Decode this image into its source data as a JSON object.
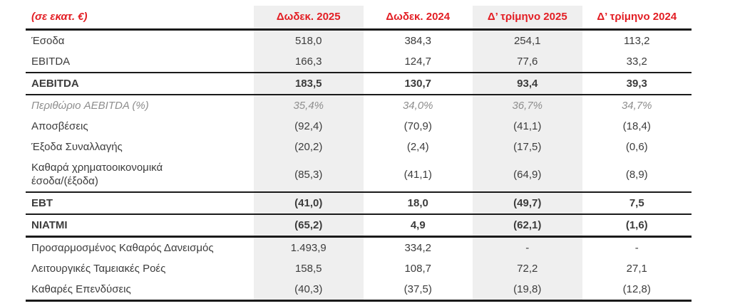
{
  "colors": {
    "accent": "#e31e24",
    "shade": "#efefef",
    "text": "#3c3c3c",
    "muted": "#8e8e8e",
    "rule": "#1a1a1a"
  },
  "chart_data": {
    "type": "table",
    "unit_label": "(σε εκατ. €)",
    "columns": [
      "Δωδεκ. 2025",
      "Δωδεκ. 2024",
      "Δ’ τρίμηνο 2025",
      "Δ’ τρίμηνο 2024"
    ],
    "highlighted_columns": [
      "Δωδεκ. 2025",
      "Δ’ τρίμηνο 2025"
    ],
    "rows": [
      {
        "label": "Έσοδα",
        "values": [
          "518,0",
          "384,3",
          "254,1",
          "113,2"
        ],
        "emphasis": "normal",
        "rule": "none"
      },
      {
        "label": "EBITDA",
        "values": [
          "166,3",
          "124,7",
          "77,6",
          "33,2"
        ],
        "emphasis": "normal",
        "rule": "thin"
      },
      {
        "label": "AEBITDA",
        "values": [
          "183,5",
          "130,7",
          "93,4",
          "39,3"
        ],
        "emphasis": "bold",
        "rule": "thin"
      },
      {
        "label": "Περιθώριο AEBITDA (%)",
        "values": [
          "35,4%",
          "34,0%",
          "36,7%",
          "34,7%"
        ],
        "emphasis": "muted",
        "rule": "none"
      },
      {
        "label": "Αποσβέσεις",
        "values": [
          "(92,4)",
          "(70,9)",
          "(41,1)",
          "(18,4)"
        ],
        "emphasis": "normal",
        "rule": "none"
      },
      {
        "label": "Έξοδα Συναλλαγής",
        "values": [
          "(20,2)",
          "(2,4)",
          "(17,5)",
          "(0,6)"
        ],
        "emphasis": "normal",
        "rule": "none"
      },
      {
        "label": "Καθαρά χρηματοοικονομικά\nέσοδα/(έξοδα)",
        "values": [
          "(85,3)",
          "(41,1)",
          "(64,9)",
          "(8,9)"
        ],
        "emphasis": "normal",
        "rule": "thin"
      },
      {
        "label": "EBT",
        "values": [
          "(41,0)",
          "18,0",
          "(49,7)",
          "7,5"
        ],
        "emphasis": "bold",
        "rule": "thin"
      },
      {
        "label": "NIATMI",
        "values": [
          "(65,2)",
          "4,9",
          "(62,1)",
          "(1,6)"
        ],
        "emphasis": "bold",
        "rule": "thick"
      },
      {
        "label": "Προσαρμοσμένος Καθαρός Δανεισμός",
        "values": [
          "1.493,9",
          "334,2",
          "-",
          "-"
        ],
        "emphasis": "normal",
        "rule": "none"
      },
      {
        "label": "Λειτουργικές Ταμειακές Ροές",
        "values": [
          "158,5",
          "108,7",
          "72,2",
          "27,1"
        ],
        "emphasis": "normal",
        "rule": "none"
      },
      {
        "label": "Καθαρές Επενδύσεις",
        "values": [
          "(40,3)",
          "(37,5)",
          "(19,8)",
          "(12,8)"
        ],
        "emphasis": "normal",
        "rule": "thick"
      }
    ]
  }
}
